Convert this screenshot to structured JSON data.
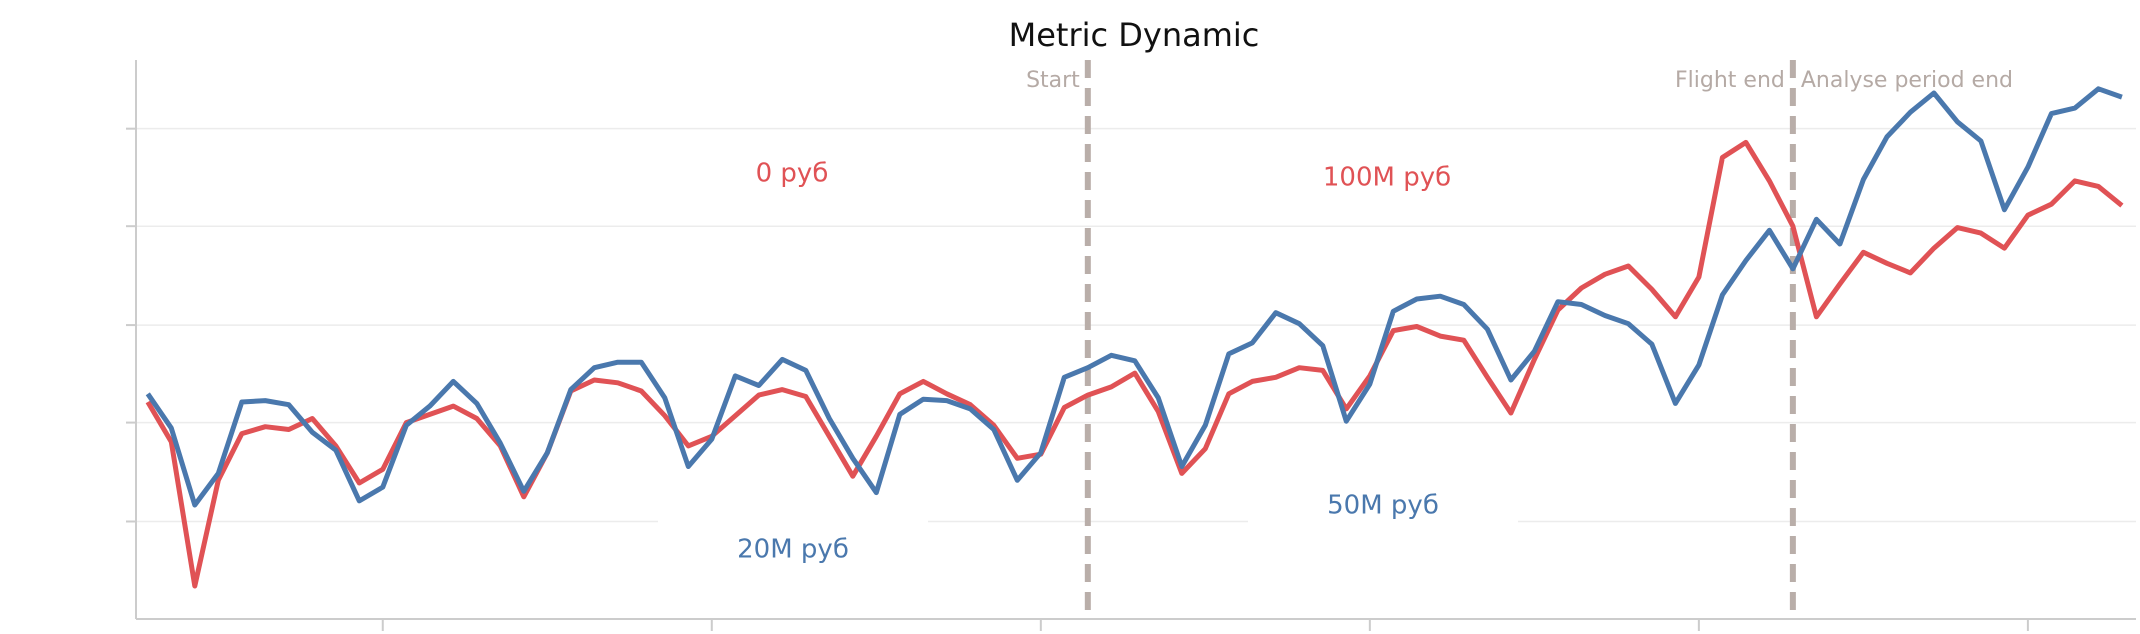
{
  "chart_data": {
    "type": "line",
    "title": "Metric Dynamic",
    "x": [
      0,
      1,
      2,
      3,
      4,
      5,
      6,
      7,
      8,
      9,
      10,
      11,
      12,
      13,
      14,
      15,
      16,
      17,
      18,
      19,
      20,
      21,
      22,
      23,
      24,
      25,
      26,
      27,
      28,
      29,
      30,
      31,
      32,
      33,
      34,
      35,
      36,
      37,
      38,
      39,
      40,
      41,
      42,
      43,
      44,
      45,
      46,
      47,
      48,
      49,
      50,
      51,
      52,
      53,
      54,
      55,
      56,
      57,
      58,
      59,
      60,
      61,
      62,
      63,
      64,
      65,
      66,
      67,
      68,
      69,
      70,
      71,
      72,
      73,
      74,
      75,
      76,
      77,
      78,
      79,
      80,
      81,
      82,
      83,
      84
    ],
    "series": [
      {
        "color": "#e05255",
        "values": [
          158,
          129,
          24,
          101,
          135,
          140,
          138,
          146,
          126,
          99,
          109,
          143,
          149,
          155,
          146,
          126,
          89,
          121,
          166,
          174,
          172,
          166,
          148,
          126,
          133,
          148,
          163,
          167,
          162,
          133,
          104,
          133,
          164,
          173,
          164,
          156,
          141,
          117,
          120,
          154,
          163,
          169,
          179,
          151,
          106,
          124,
          164,
          173,
          176,
          183,
          181,
          153,
          177,
          210,
          213,
          206,
          203,
          176,
          150,
          189,
          225,
          241,
          251,
          257,
          240,
          220,
          249,
          336,
          347,
          319,
          286,
          220,
          244,
          267,
          259,
          252,
          270,
          285,
          281,
          270,
          294,
          302,
          319,
          315,
          301
        ]
      },
      {
        "color": "#4a78ad",
        "values": [
          164,
          139,
          83,
          106,
          158,
          159,
          156,
          136,
          123,
          86,
          96,
          141,
          155,
          173,
          157,
          128,
          93,
          121,
          167,
          183,
          187,
          187,
          161,
          111,
          131,
          177,
          170,
          189,
          181,
          146,
          117,
          92,
          149,
          160,
          159,
          153,
          138,
          101,
          121,
          176,
          183,
          192,
          188,
          161,
          111,
          141,
          193,
          201,
          223,
          215,
          199,
          144,
          171,
          224,
          233,
          235,
          229,
          211,
          174,
          195,
          231,
          229,
          221,
          215,
          200,
          157,
          185,
          236,
          261,
          283,
          255,
          291,
          273,
          320,
          351,
          369,
          383,
          362,
          348,
          298,
          329,
          368,
          372,
          386,
          380
        ]
      }
    ],
    "xlim": [
      -0.5,
      84.6
    ],
    "xticks": [
      10,
      24,
      38,
      52,
      66,
      80
    ],
    "ylim": [
      0,
      407
    ],
    "yticks": [
      71,
      143,
      214,
      286,
      357
    ],
    "grid": true,
    "vlines": [
      {
        "x": 40,
        "label": "Start"
      },
      {
        "x": 70,
        "label": "Flight end"
      },
      {
        "x": 70,
        "label": "Analyse period end"
      }
    ],
    "annotations": [
      {
        "text": "0 руб",
        "color": "#e05255"
      },
      {
        "text": "100M руб",
        "color": "#e05255"
      },
      {
        "text": "20M руб",
        "color": "#4a78ad"
      },
      {
        "text": "50M руб",
        "color": "#4a78ad"
      }
    ]
  }
}
